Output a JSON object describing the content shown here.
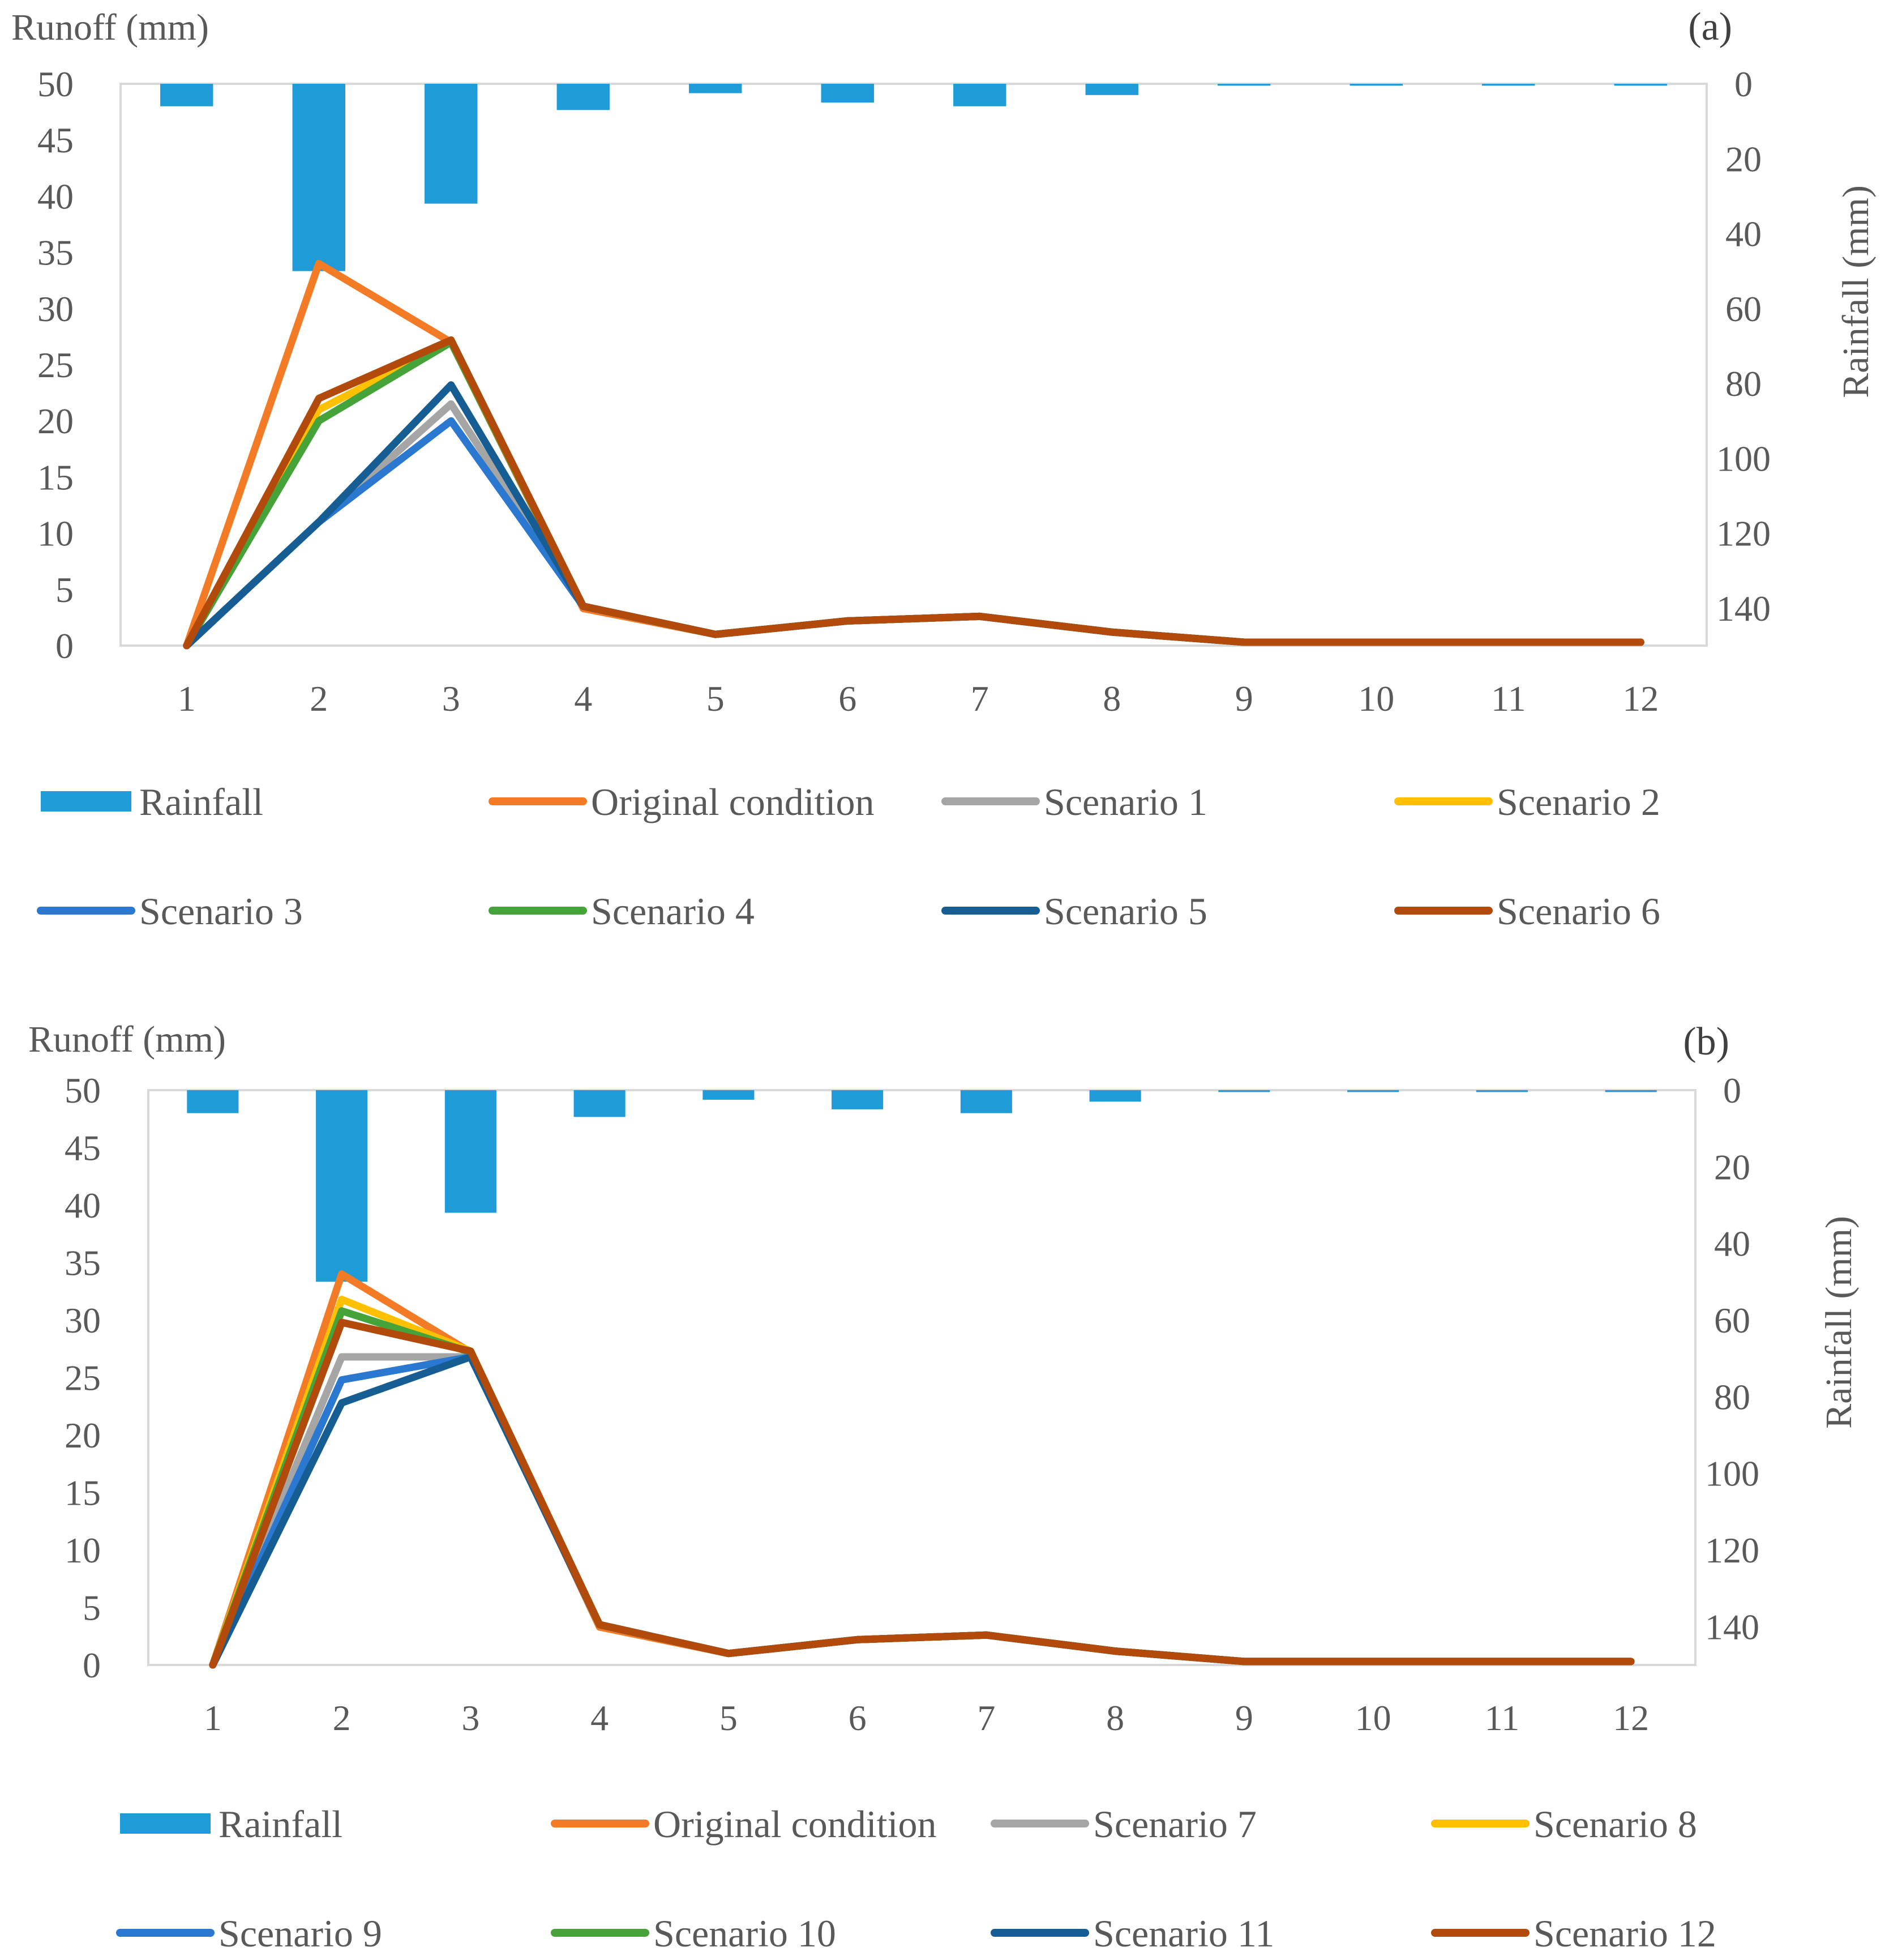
{
  "chart_data": [
    {
      "type": "line",
      "panel_label": "(a)",
      "ylabel_left": "Runoff (mm)",
      "ylabel_right": "Rainfall (mm)",
      "categories": [
        "1",
        "2",
        "3",
        "4",
        "5",
        "6",
        "7",
        "8",
        "9",
        "10",
        "11",
        "12"
      ],
      "ylim_left": [
        0,
        50
      ],
      "yticks_left": [
        "0",
        "5",
        "10",
        "15",
        "20",
        "25",
        "30",
        "35",
        "40",
        "45",
        "50"
      ],
      "ylim_right": [
        0,
        150
      ],
      "y_right_inverted": true,
      "yticks_right": [
        "0",
        "20",
        "40",
        "60",
        "80",
        "100",
        "120",
        "140"
      ],
      "rainfall": {
        "name": "Rainfall",
        "type": "bar",
        "color": "#1f9bd7",
        "values": [
          6,
          50,
          32,
          7,
          2.5,
          5,
          6,
          3,
          0.5,
          0.5,
          0.5,
          0.5
        ]
      },
      "series": [
        {
          "name": "Original condition",
          "color": "#f47b25",
          "values": [
            0,
            34,
            27,
            3.3,
            1,
            2.2,
            2.6,
            1.2,
            0.3,
            0.3,
            0.3,
            0.3
          ]
        },
        {
          "name": "Scenario 1",
          "color": "#a5a5a5",
          "values": [
            0,
            11,
            21.5,
            3.5,
            1,
            2.2,
            2.6,
            1.2,
            0.3,
            0.3,
            0.3,
            0.3
          ]
        },
        {
          "name": "Scenario 2",
          "color": "#ffc000",
          "values": [
            0,
            21,
            27,
            3.5,
            1,
            2.2,
            2.6,
            1.2,
            0.3,
            0.3,
            0.3,
            0.3
          ]
        },
        {
          "name": "Scenario 3",
          "color": "#2b78d1",
          "values": [
            0,
            11,
            20,
            3.5,
            1,
            2.2,
            2.6,
            1.2,
            0.3,
            0.3,
            0.3,
            0.3
          ]
        },
        {
          "name": "Scenario 4",
          "color": "#45a33a",
          "values": [
            0,
            20,
            27,
            3.5,
            1,
            2.2,
            2.6,
            1.2,
            0.3,
            0.3,
            0.3,
            0.3
          ]
        },
        {
          "name": "Scenario 5",
          "color": "#155d92",
          "values": [
            0,
            11,
            23.2,
            3.5,
            1,
            2.2,
            2.6,
            1.2,
            0.3,
            0.3,
            0.3,
            0.3
          ]
        },
        {
          "name": "Scenario 6",
          "color": "#b24a0c",
          "values": [
            0,
            22,
            27.2,
            3.5,
            1,
            2.2,
            2.6,
            1.2,
            0.3,
            0.3,
            0.3,
            0.3
          ]
        }
      ]
    },
    {
      "type": "line",
      "panel_label": "(b)",
      "ylabel_left": "Runoff (mm)",
      "ylabel_right": "Rainfall (mm)",
      "categories": [
        "1",
        "2",
        "3",
        "4",
        "5",
        "6",
        "7",
        "8",
        "9",
        "10",
        "11",
        "12"
      ],
      "ylim_left": [
        0,
        50
      ],
      "yticks_left": [
        "0",
        "5",
        "10",
        "15",
        "20",
        "25",
        "30",
        "35",
        "40",
        "45",
        "50"
      ],
      "ylim_right": [
        0,
        150
      ],
      "y_right_inverted": true,
      "yticks_right": [
        "0",
        "20",
        "40",
        "60",
        "80",
        "100",
        "120",
        "140"
      ],
      "rainfall": {
        "name": "Rainfall",
        "type": "bar",
        "color": "#1f9bd7",
        "values": [
          6,
          50,
          32,
          7,
          2.5,
          5,
          6,
          3,
          0.5,
          0.5,
          0.5,
          0.5
        ]
      },
      "series": [
        {
          "name": "Original condition",
          "color": "#f47b25",
          "values": [
            0,
            34,
            27.2,
            3.3,
            1,
            2.2,
            2.6,
            1.2,
            0.3,
            0.3,
            0.3,
            0.3
          ]
        },
        {
          "name": "Scenario 7",
          "color": "#a5a5a5",
          "values": [
            0,
            26.8,
            26.8,
            3.5,
            1,
            2.2,
            2.6,
            1.2,
            0.3,
            0.3,
            0.3,
            0.3
          ]
        },
        {
          "name": "Scenario 8",
          "color": "#ffc000",
          "values": [
            0,
            31.8,
            27.3,
            3.5,
            1,
            2.2,
            2.6,
            1.2,
            0.3,
            0.3,
            0.3,
            0.3
          ]
        },
        {
          "name": "Scenario 9",
          "color": "#2b78d1",
          "values": [
            0,
            24.8,
            26.8,
            3.5,
            1,
            2.2,
            2.6,
            1.2,
            0.3,
            0.3,
            0.3,
            0.3
          ]
        },
        {
          "name": "Scenario 10",
          "color": "#45a33a",
          "values": [
            0,
            30.8,
            27.2,
            3.5,
            1,
            2.2,
            2.6,
            1.2,
            0.3,
            0.3,
            0.3,
            0.3
          ]
        },
        {
          "name": "Scenario 11",
          "color": "#155d92",
          "values": [
            0,
            22.8,
            26.8,
            3.5,
            1,
            2.2,
            2.6,
            1.2,
            0.3,
            0.3,
            0.3,
            0.3
          ]
        },
        {
          "name": "Scenario 12",
          "color": "#b24a0c",
          "values": [
            0,
            29.8,
            27.3,
            3.5,
            1,
            2.2,
            2.6,
            1.2,
            0.3,
            0.3,
            0.3,
            0.3
          ]
        }
      ]
    }
  ]
}
